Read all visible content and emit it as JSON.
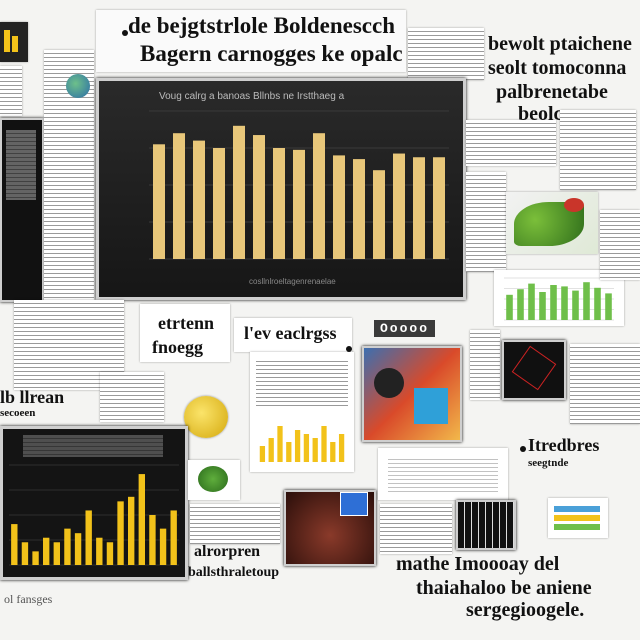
{
  "headline": {
    "line1": "de bejgtstrlole Boldenescch",
    "line2": "Bagern carnogges ke opalc"
  },
  "top_right_text": {
    "line1": "bewolt ptaichene",
    "line2": "seolt tomoconna",
    "line3": "palbrenetabe",
    "line4": "beolce."
  },
  "main_chart": {
    "title": "Voug calrg a banoas Bllnbs ne Irstthaeg a",
    "caption": "cosllnlroeltagenrenaelae"
  },
  "mid_labels": {
    "label_a": "etrtenn",
    "label_b": "fnoegg",
    "label_c": "l'ev eaclrgss",
    "tag": "Ooooo"
  },
  "left_label": {
    "line1": "lb llrean",
    "line2": "secoeen"
  },
  "right_label": {
    "line1": "Itredbres",
    "line2": "seegtnde"
  },
  "bottom_left_text": {
    "line1": "alrorpren",
    "line2": "ballsthraletoup"
  },
  "bottom_right_text": {
    "line1": "mathe Imoooay del",
    "line2": "thaiahaloo be aniene",
    "line3": "sergegioogele."
  },
  "corner_text": "ol fansges",
  "colors": {
    "bar": "#e8c77a",
    "bar_bright": "#f2c21a",
    "green_bar": "#6fbf4a",
    "panel": "#1c1c1c"
  },
  "icons": [
    "globe-icon",
    "leaf-photo",
    "lemon-icon",
    "plant-icon"
  ],
  "chart_data": [
    {
      "type": "bar",
      "title": "Voug calrg a banoas Bllnbs ne Irstthaeg a",
      "values": [
        62,
        68,
        64,
        60,
        72,
        67,
        60,
        59,
        68,
        56,
        54,
        48,
        57,
        55,
        55
      ]
    },
    {
      "type": "bar",
      "values": [
        9,
        5,
        3,
        6,
        5,
        8,
        7,
        12,
        6,
        5,
        14,
        15,
        20,
        11,
        8,
        12
      ]
    },
    {
      "type": "bar",
      "values": [
        4,
        6,
        9,
        5,
        8,
        7,
        6,
        9,
        5,
        7
      ]
    },
    {
      "type": "bar",
      "values": [
        18,
        22,
        26,
        20,
        25,
        24,
        21,
        27,
        23,
        19
      ]
    }
  ]
}
